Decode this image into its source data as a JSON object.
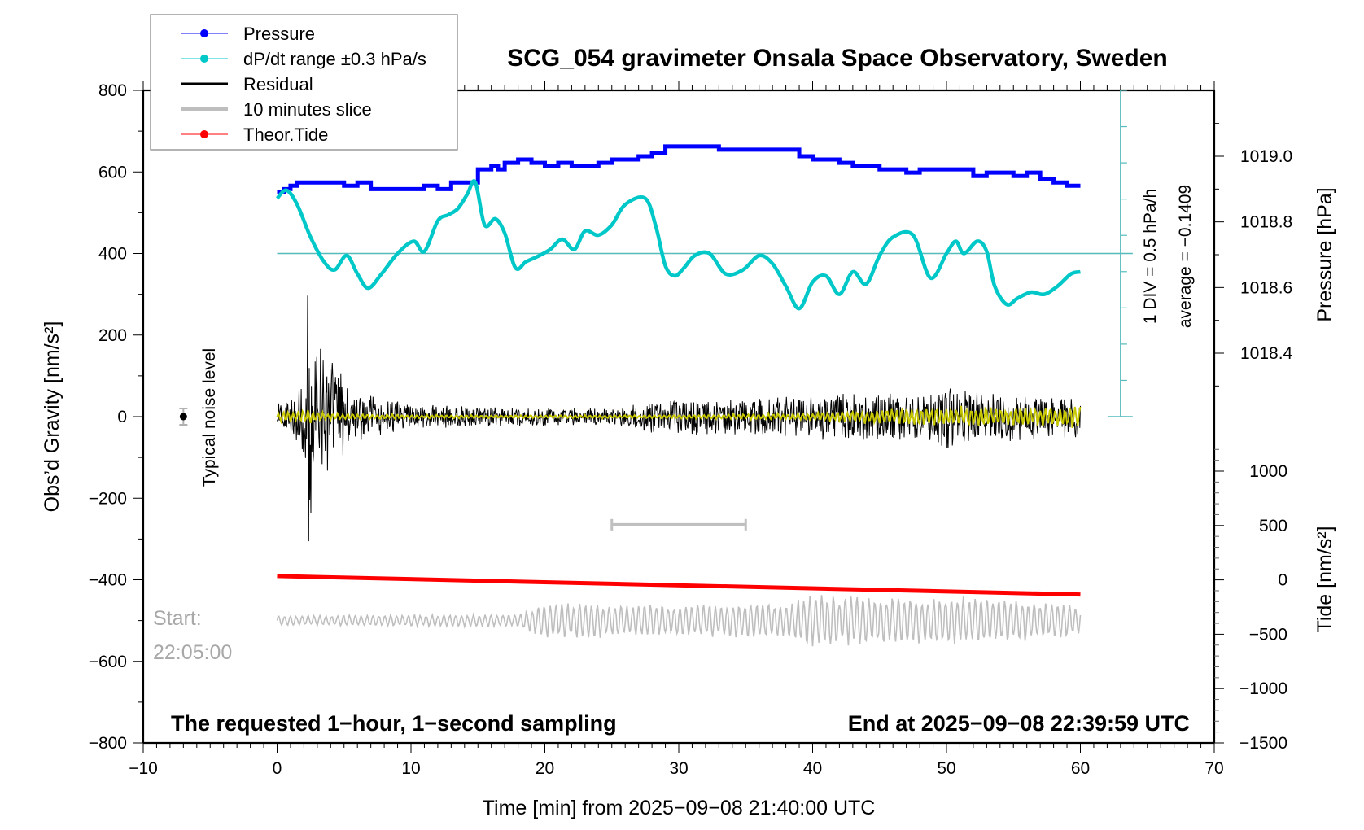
{
  "chart_data": {
    "type": "line",
    "title": "SCG_054 gravimeter Onsala Space Observatory, Sweden",
    "xlabel": "Time [min] from 2025−09−08 21:40:00 UTC",
    "ylabel": "Obs’d Gravity [nm/s²]",
    "ylabel_right_pressure": "Pressure [hPa]",
    "ylabel_right_tide": "Tide [nm/s²]",
    "xlim": [
      -10,
      70
    ],
    "ylim": [
      -800,
      800
    ],
    "x_ticks": [
      -10,
      0,
      10,
      20,
      30,
      40,
      50,
      60,
      70
    ],
    "x_tick_labels": [
      "−10",
      "0",
      "10",
      "20",
      "30",
      "40",
      "50",
      "60",
      "70"
    ],
    "y_ticks": [
      800,
      600,
      400,
      200,
      0,
      -200,
      -400,
      -600,
      -800
    ],
    "y_tick_labels": [
      "800",
      "600",
      "400",
      "200",
      "0",
      "−200",
      "−400",
      "−600",
      "−800"
    ],
    "pressure_ticks": [
      1019.0,
      1018.8,
      1018.6,
      1018.4
    ],
    "pressure_tick_labels": [
      "1019.0",
      "1018.8",
      "1018.6",
      "1018.4"
    ],
    "tide_ticks": [
      1000,
      500,
      0,
      -500,
      -1000,
      -1500
    ],
    "tide_tick_labels": [
      "1000",
      "500",
      "0",
      "−500",
      "−1000",
      "−1500"
    ],
    "legend": {
      "position": "top-left",
      "entries": [
        {
          "label": "Pressure",
          "color": "#0000ff",
          "style": "line-dot"
        },
        {
          "label": "dP/dt range ±0.3 hPa/s",
          "color": "#00c8c8",
          "style": "line-dot"
        },
        {
          "label": "Residual",
          "color": "#000000",
          "style": "line"
        },
        {
          "label": "10 minutes slice",
          "color": "#bebebe",
          "style": "line"
        },
        {
          "label": "Theor.Tide",
          "color": "#ff0000",
          "style": "line-dot"
        }
      ]
    },
    "series": [
      {
        "name": "Pressure",
        "axis": "pressure",
        "color": "#0000ff",
        "x": [
          0,
          0.5,
          1,
          1.5,
          2,
          4,
          5,
          6,
          7,
          9,
          10,
          11,
          12,
          13,
          14,
          15,
          16,
          16.5,
          17,
          18,
          19,
          20,
          21,
          22,
          24,
          25,
          27,
          28,
          29,
          30,
          33,
          36,
          39,
          40,
          42,
          43,
          45,
          46,
          47,
          48,
          50,
          51,
          52,
          53,
          54,
          55,
          56,
          57,
          58,
          59,
          60
        ],
        "values": [
          1018.89,
          1018.9,
          1018.91,
          1018.92,
          1018.92,
          1018.92,
          1018.91,
          1018.92,
          1018.9,
          1018.9,
          1018.9,
          1018.91,
          1018.9,
          1018.92,
          1018.92,
          1018.96,
          1018.97,
          1018.96,
          1018.98,
          1018.99,
          1018.98,
          1018.97,
          1018.98,
          1018.97,
          1018.98,
          1018.99,
          1019.0,
          1019.01,
          1019.03,
          1019.03,
          1019.02,
          1019.02,
          1019.0,
          1018.99,
          1018.98,
          1018.97,
          1018.96,
          1018.96,
          1018.95,
          1018.96,
          1018.96,
          1018.96,
          1018.94,
          1018.95,
          1018.95,
          1018.94,
          1018.95,
          1018.93,
          1018.92,
          1018.91,
          1018.91
        ]
      },
      {
        "name": "dP/dt range ±0.3 hPa/s",
        "axis": "gravity",
        "color": "#00c8c8",
        "x": [
          0,
          0.7,
          1.5,
          2.5,
          3.5,
          4.3,
          5.2,
          6.0,
          6.8,
          7.8,
          9,
          10.2,
          11,
          12,
          12.8,
          13.5,
          14.2,
          14.8,
          15.5,
          16.3,
          17,
          17.8,
          18.6,
          19.6,
          20.4,
          21.3,
          22.2,
          23,
          24,
          25,
          26,
          27.5,
          28.3,
          29,
          29.7,
          30.4,
          31.2,
          32.3,
          33.5,
          34.8,
          36,
          37,
          38,
          39,
          40,
          41,
          42,
          43,
          44,
          45,
          46,
          47.5,
          48.8,
          50,
          50.7,
          51.3,
          52.3,
          53.0,
          53.6,
          54.5,
          55.3,
          56.3,
          57.3,
          58.3,
          59.3,
          60
        ],
        "values": [
          535,
          555,
          520,
          440,
          380,
          360,
          395,
          350,
          315,
          350,
          400,
          430,
          405,
          480,
          495,
          510,
          545,
          575,
          470,
          485,
          450,
          365,
          380,
          395,
          410,
          435,
          410,
          455,
          445,
          470,
          520,
          535,
          465,
          370,
          345,
          365,
          395,
          400,
          350,
          360,
          395,
          375,
          320,
          265,
          330,
          345,
          300,
          355,
          325,
          395,
          440,
          445,
          340,
          400,
          430,
          400,
          430,
          405,
          320,
          275,
          290,
          305,
          300,
          320,
          350,
          355
        ]
      },
      {
        "name": "Residual",
        "axis": "gravity",
        "color": "#000000",
        "envelope_x": [
          0,
          1,
          2,
          2.3,
          2.6,
          3,
          4,
          5,
          6,
          8,
          10,
          15,
          20,
          25,
          28,
          30,
          35,
          40,
          42,
          45,
          48,
          50,
          52,
          55,
          58,
          60
        ],
        "envelope_amplitude": [
          30,
          50,
          110,
          350,
          200,
          190,
          160,
          90,
          60,
          45,
          30,
          25,
          22,
          20,
          40,
          45,
          45,
          55,
          60,
          65,
          50,
          80,
          60,
          60,
          55,
          50
        ]
      },
      {
        "name": "Residual (filtered, yellow)",
        "axis": "gravity",
        "color": "#c8c800",
        "envelope_x": [
          0,
          2,
          4,
          10,
          20,
          30,
          40,
          45,
          50,
          55,
          60
        ],
        "envelope_amplitude": [
          12,
          18,
          10,
          5,
          4,
          5,
          10,
          20,
          30,
          25,
          30
        ]
      },
      {
        "name": "10 minutes slice",
        "axis": "gravity",
        "color": "#bebebe",
        "note": "slice re-plotted across 0-60 min, centered at -500",
        "baseline": -500,
        "envelope_x": [
          0,
          10,
          18,
          20,
          30,
          38,
          40,
          45,
          50,
          55,
          60
        ],
        "envelope_amplitude": [
          12,
          15,
          15,
          45,
          40,
          45,
          65,
          60,
          65,
          55,
          40
        ]
      },
      {
        "name": "Theor.Tide",
        "axis": "tide",
        "color": "#ff0000",
        "x": [
          0,
          60
        ],
        "values": [
          35,
          -135
        ]
      }
    ],
    "annotations": {
      "noise_label": "Typical noise level",
      "noise_point": {
        "x": -7,
        "y": 0,
        "err": 20
      },
      "slice_bar": {
        "x_start": 25,
        "x_end": 35,
        "y": -265
      },
      "dpdt_zero_level": 400,
      "dpdt_scale": "1 DIV = 0.5 hPa/h",
      "dpdt_average": "average = −0.1409",
      "start_label": "Start:",
      "start_time": "22:05:00",
      "bottom_left": "The requested 1−hour, 1−second sampling",
      "bottom_right": "End at 2025−09−08 22:39:59 UTC"
    }
  }
}
